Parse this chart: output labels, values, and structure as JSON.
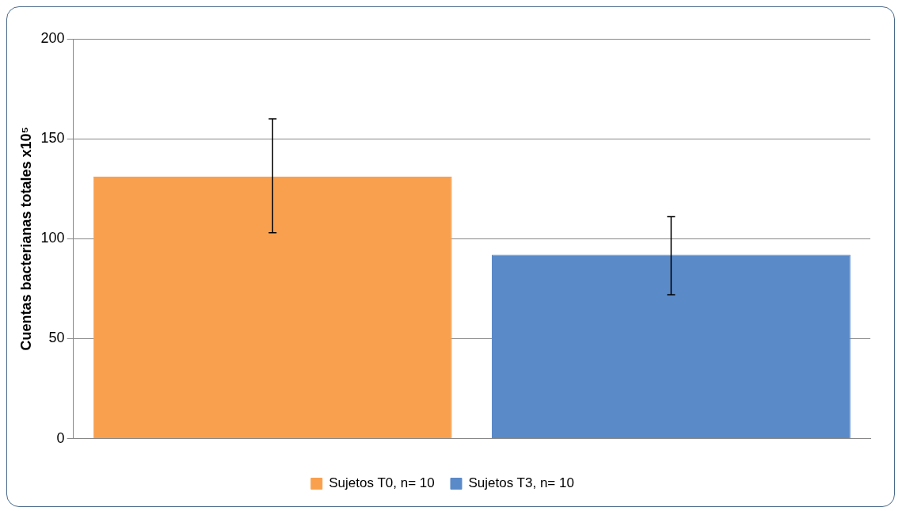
{
  "chart_data": {
    "type": "bar",
    "ylabel": "Cuentas bacterianas totales x10⁵",
    "categories": [
      null,
      null
    ],
    "series": [
      {
        "name": "Sujetos T0, n= 10",
        "color": "#f9a04e",
        "values": [
          131,
          null
        ],
        "errors": [
          [
            103,
            160
          ],
          null
        ]
      },
      {
        "name": "Sujetos T3, n= 10",
        "color": "#5a8ac8",
        "values": [
          null,
          92
        ],
        "errors": [
          null,
          [
            72,
            111
          ]
        ]
      }
    ],
    "ylim": [
      0,
      200
    ],
    "yticks": [
      0,
      50,
      100,
      150,
      200
    ],
    "grid": "y",
    "legend": "bottom"
  }
}
